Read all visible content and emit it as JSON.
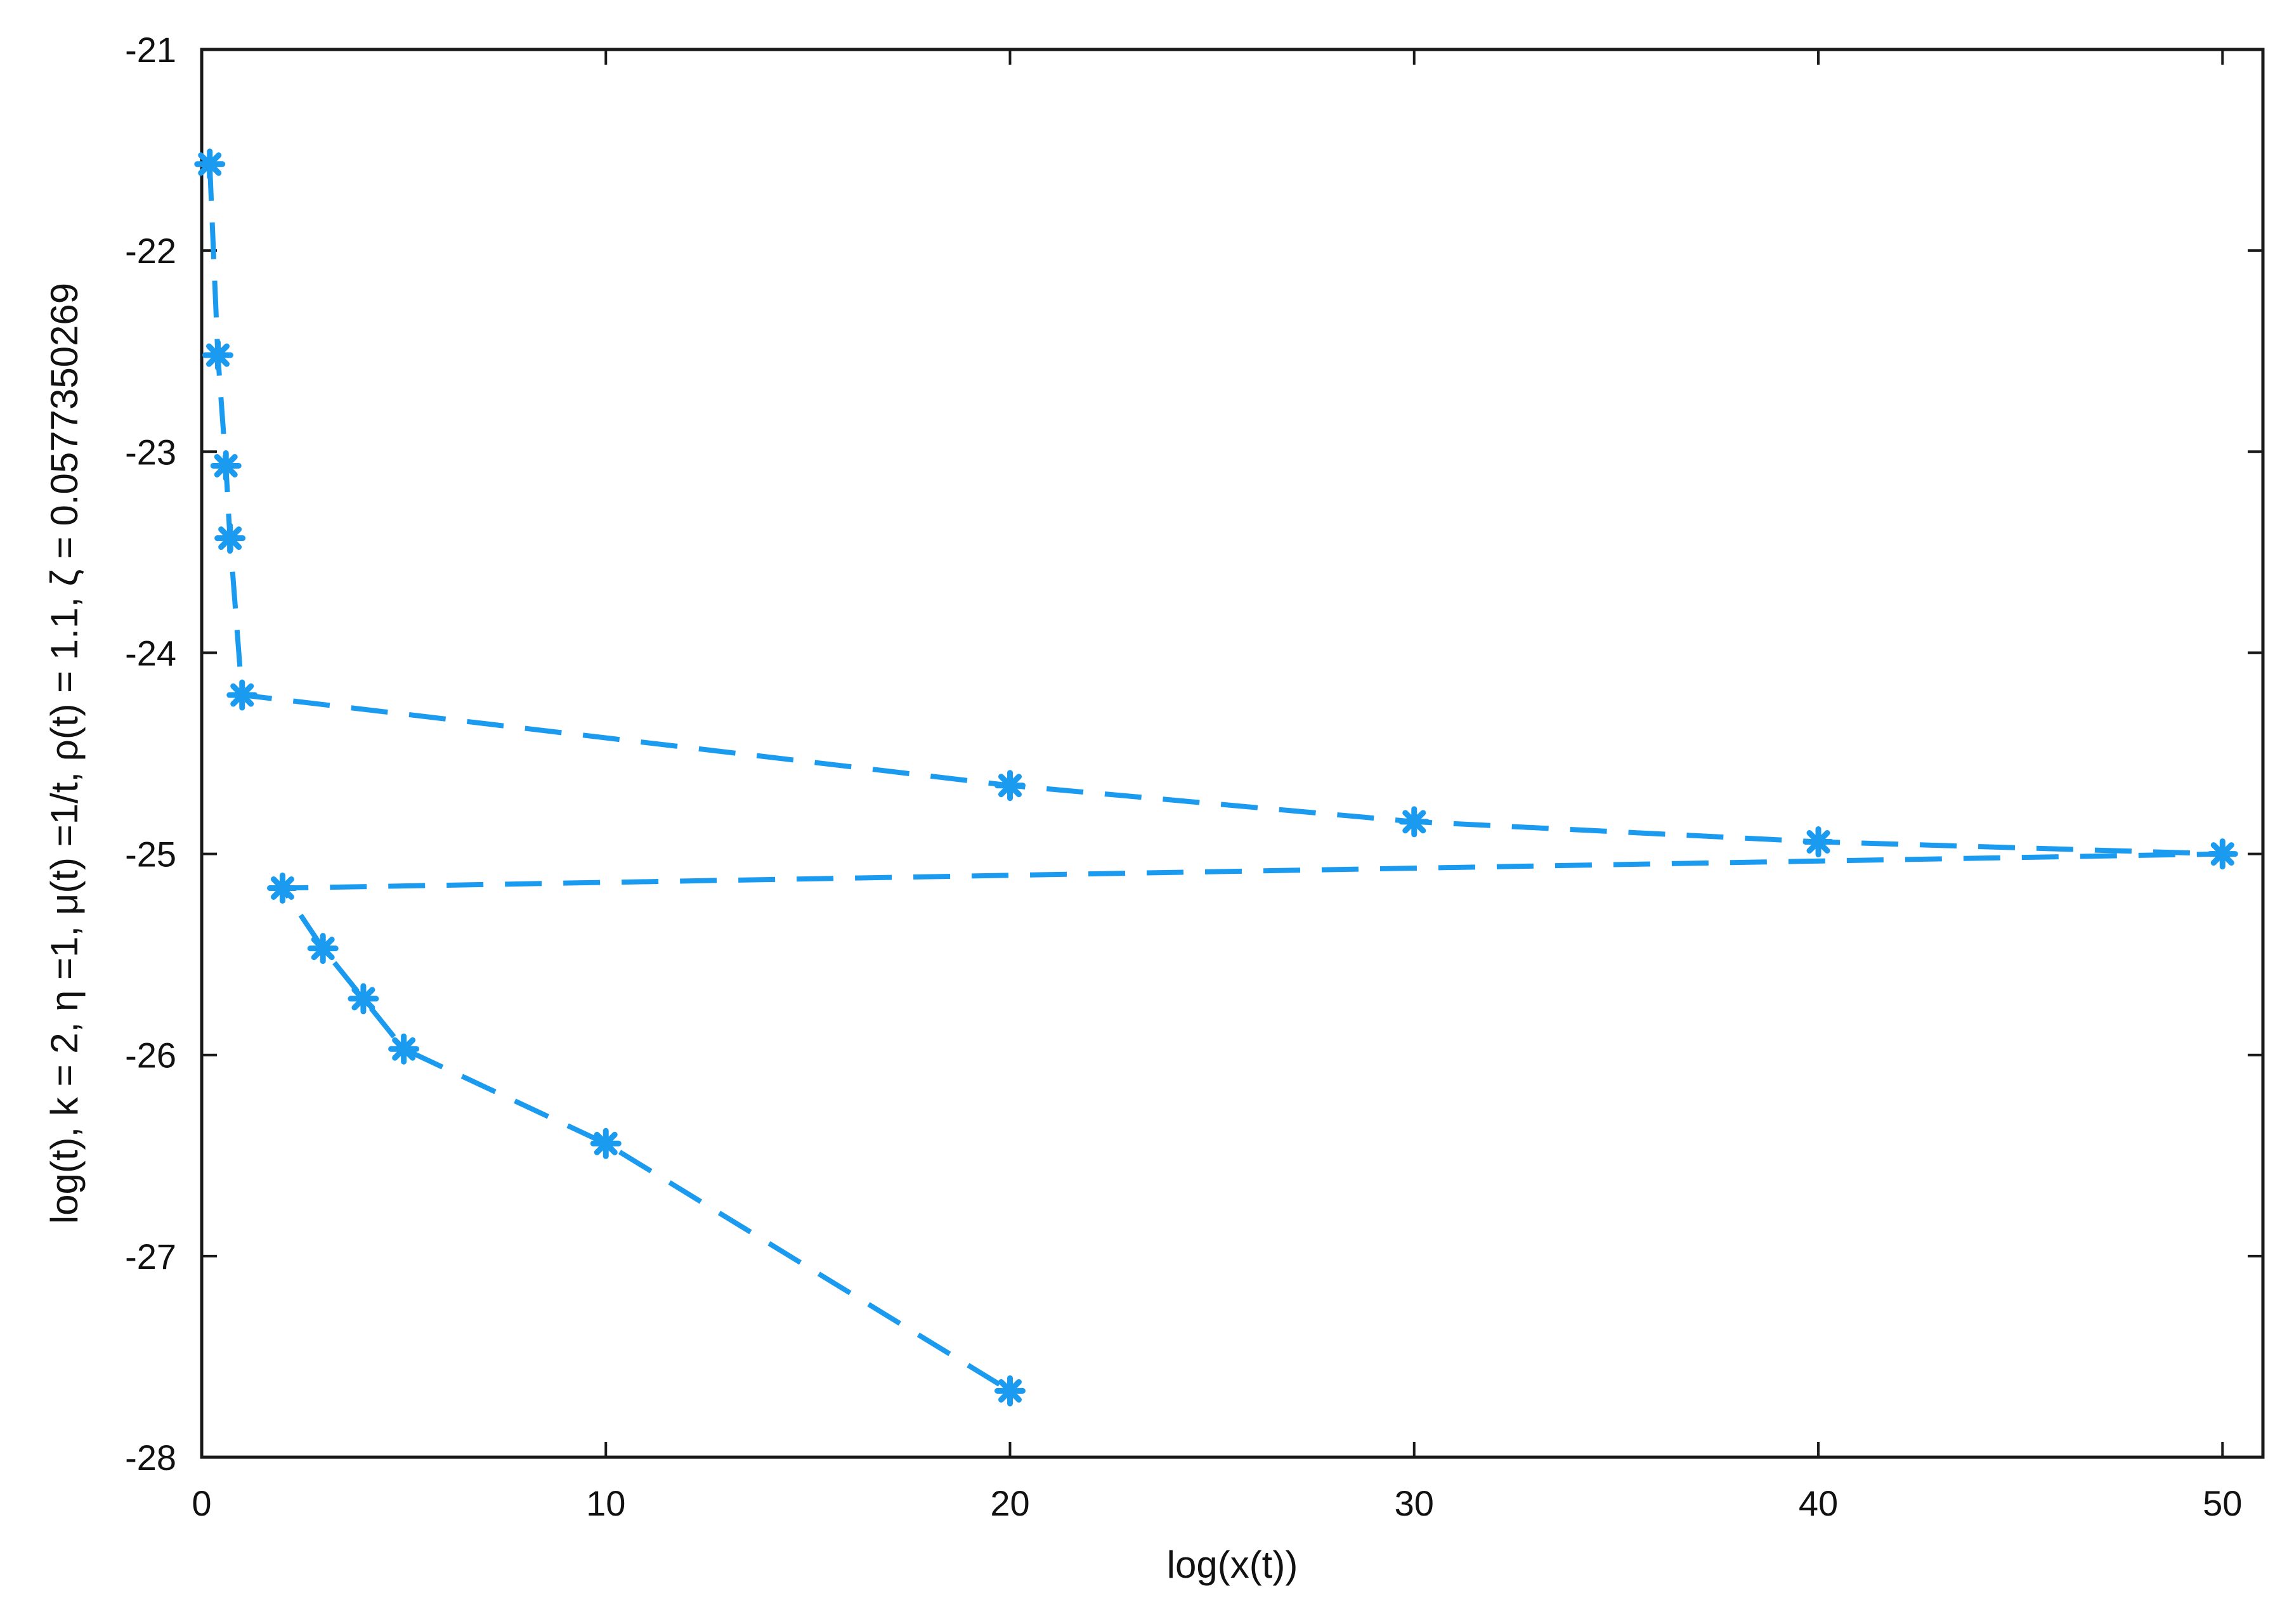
{
  "chart_data": {
    "type": "line",
    "title": "",
    "xlabel": "log(x(t))",
    "ylabel": "log(t), k = 2, η =1, μ(t) =1/t, ρ(t) = 1.1, ζ = 0.0577350269",
    "xlim": [
      0,
      51
    ],
    "ylim": [
      -28,
      -21
    ],
    "x_ticks": [
      0,
      10,
      20,
      30,
      40,
      50
    ],
    "y_ticks": [
      -28,
      -27,
      -26,
      -25,
      -24,
      -23,
      -22,
      -21
    ],
    "x_tick_labels": [
      "0",
      "10",
      "20",
      "30",
      "40",
      "50"
    ],
    "y_tick_labels": [
      "-28",
      "-27",
      "-26",
      "-25",
      "-24",
      "-23",
      "-22",
      "-21"
    ],
    "grid": false,
    "legend": "none",
    "line_style": "dashed",
    "marker": "asterisk",
    "color": "#1a9bf0",
    "series": [
      {
        "points": [
          [
            0.2,
            -21.57
          ],
          [
            0.4,
            -22.52
          ],
          [
            0.6,
            -23.07
          ],
          [
            0.7,
            -23.43
          ],
          [
            1.0,
            -24.21
          ],
          [
            20,
            -24.66
          ],
          [
            30,
            -24.84
          ],
          [
            40,
            -24.94
          ],
          [
            50,
            -25.0
          ],
          [
            2,
            -25.17
          ],
          [
            3,
            -25.47
          ],
          [
            4,
            -25.72
          ],
          [
            5,
            -25.97
          ],
          [
            10,
            -26.44
          ],
          [
            20,
            -27.67
          ]
        ]
      }
    ]
  }
}
